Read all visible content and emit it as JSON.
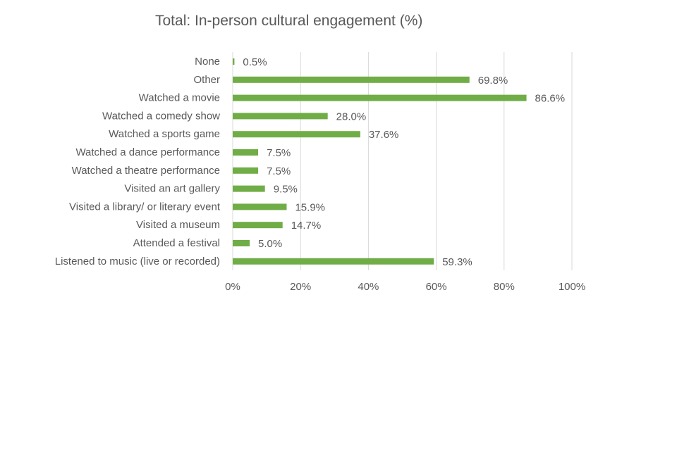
{
  "chart_data": {
    "type": "bar",
    "orientation": "horizontal",
    "title": "Total: In-person cultural engagement (%)",
    "categories": [
      "None",
      "Other",
      "Watched a movie",
      "Watched a comedy show",
      "Watched a sports game",
      "Watched a dance performance",
      "Watched a theatre performance",
      "Visited an art gallery",
      "Visited a library/ or literary event",
      "Visited a museum",
      "Attended a festival",
      "Listened to music (live or recorded)"
    ],
    "values": [
      0.5,
      69.8,
      86.6,
      28.0,
      37.6,
      7.5,
      7.5,
      9.5,
      15.9,
      14.7,
      5.0,
      59.3
    ],
    "value_labels": [
      "0.5%",
      "69.8%",
      "86.6%",
      "28.0%",
      "37.6%",
      "7.5%",
      "7.5%",
      "9.5%",
      "15.9%",
      "14.7%",
      "5.0%",
      "59.3%"
    ],
    "xlim": [
      0,
      100
    ],
    "xticks": [
      0,
      20,
      40,
      60,
      80,
      100
    ],
    "xtick_labels": [
      "0%",
      "20%",
      "40%",
      "60%",
      "80%",
      "100%"
    ],
    "xlabel": "",
    "ylabel": "",
    "grid": "vertical",
    "legend": "none",
    "colors": {
      "bar": "#70ad47",
      "grid": "#d9d9d9",
      "text": "#595959"
    }
  }
}
